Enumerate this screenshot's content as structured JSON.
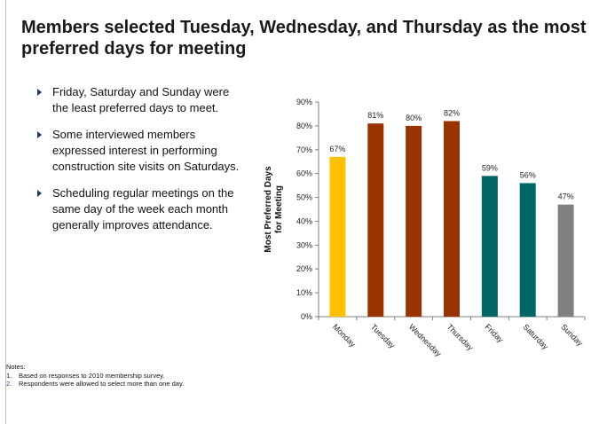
{
  "slide": {
    "title": "Members selected Tuesday, Wednesday, and Thursday as the most preferred days for meeting",
    "bullets": [
      "Friday, Saturday and Sunday were the least preferred days to meet.",
      "Some interviewed members expressed interest in performing construction site visits on Saturdays.",
      "Scheduling regular meetings on the same day of the week each month generally improves attendance."
    ],
    "notes": {
      "heading": "Notes:",
      "items": [
        {
          "num": "1.",
          "text": "Based on responses to 2010 membership survey."
        },
        {
          "num": "2.",
          "text": "Respondents were allowed to select more than one day."
        }
      ]
    }
  },
  "chart_data": {
    "type": "bar",
    "title": "",
    "ylabel": "Most Preferred Days for Meeting",
    "ylabel_lines": [
      "Most Preferred Days",
      "for Meeting"
    ],
    "xlabel": "",
    "categories": [
      "Monday",
      "Tuesday",
      "Wednesday",
      "Thursday",
      "Friday",
      "Saturday",
      "Sunday"
    ],
    "values": [
      67,
      81,
      80,
      82,
      59,
      56,
      47
    ],
    "data_labels": [
      "67%",
      "81%",
      "80%",
      "82%",
      "59%",
      "56%",
      "47%"
    ],
    "colors": [
      "#FFC000",
      "#993300",
      "#993300",
      "#993300",
      "#006666",
      "#006666",
      "#808080"
    ],
    "ylim": [
      0,
      90
    ],
    "yticks": [
      0,
      10,
      20,
      30,
      40,
      50,
      60,
      70,
      80,
      90
    ],
    "ytick_labels": [
      "0%",
      "10%",
      "20%",
      "30%",
      "40%",
      "50%",
      "60%",
      "70%",
      "80%",
      "90%"
    ],
    "grid": false,
    "legend": "none"
  }
}
